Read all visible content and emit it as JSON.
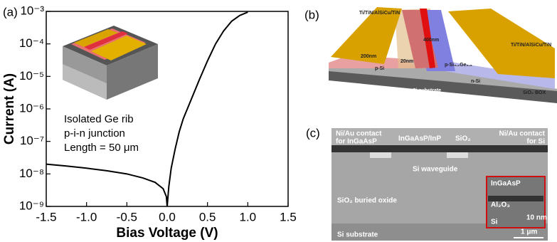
{
  "chart_data": {
    "type": "line",
    "panel_label": "(a)",
    "x_label": "Bias Voltage (V)",
    "y_label": "Current (A)",
    "annotations": [
      "Isolated Ge rib",
      "p-i-n junction",
      "Length = 50 μm"
    ],
    "x": [
      -1.5,
      -1.25,
      -1,
      -0.75,
      -0.5,
      -0.3,
      -0.15,
      -0.05,
      -0.01,
      0,
      0.02,
      0.05,
      0.1,
      0.15,
      0.2,
      0.3,
      0.4,
      0.5,
      0.6,
      0.7,
      0.8,
      0.9,
      1.0
    ],
    "values": [
      2e-08,
      1.75e-08,
      1.5e-08,
      1.25e-08,
      1e-08,
      7.5e-09,
      5.5e-09,
      3.5e-09,
      2e-09,
      1e-09,
      4e-09,
      1.5e-08,
      6e-08,
      2e-07,
      5e-07,
      2e-06,
      8e-06,
      3e-05,
      0.0001,
      0.00025,
      0.0005,
      0.00075,
      0.00095
    ],
    "color": "#000000",
    "xlim": [
      -1.5,
      1.5
    ],
    "xticks": [
      -1.5,
      {
        "value": -1,
        "label": "-1.0"
      },
      -0.5,
      {
        "value": 0,
        "label": "0.0"
      },
      0.5,
      {
        "value": 1,
        "label": "1.0"
      },
      1.5
    ],
    "ylim": [
      1e-09,
      0.001
    ],
    "ylog": true,
    "yticks": [
      {
        "value": 1e-09,
        "label": "10⁻⁹"
      },
      {
        "value": 1e-08,
        "label": "10⁻⁸"
      },
      {
        "value": 1e-07,
        "label": "10⁻⁷"
      },
      {
        "value": 1e-06,
        "label": "10⁻⁶"
      },
      {
        "value": 1e-05,
        "label": "10⁻⁵"
      },
      {
        "value": 0.0001,
        "label": "10⁻⁴"
      },
      {
        "value": 0.001,
        "label": "10⁻³"
      }
    ]
  },
  "panel_b": {
    "label": "(b)",
    "contact_left": "Ti/TiN/AlSiCu/TiN",
    "contact_right": "Ti/TiN/AlSiCu/TiN",
    "dim_400": "400nm",
    "dim_200": "200nm",
    "dim_20": "20nm",
    "p_si": "p-Si",
    "p_sige": "p-Si₀.₁Ge₀.₉",
    "n_si": "n-Si",
    "substrate": "Si substrate",
    "box": "SiO₂ BOX"
  },
  "panel_c": {
    "label": "(c)",
    "contact_left": [
      "Ni/Au contact",
      "for InGaAsP"
    ],
    "stack": "InGaAsP/InP",
    "sio2": "SiO₂",
    "contact_right": [
      "Ni/Au contact",
      "for Si"
    ],
    "waveguide": "Si waveguide",
    "buried_oxide": "SiO₂ buried oxide",
    "substrate": "Si substrate",
    "inset": [
      "InGaAsP",
      "Al₂O₃",
      "Si"
    ],
    "inset_scale": "10 nm",
    "scale": "1 μm"
  }
}
